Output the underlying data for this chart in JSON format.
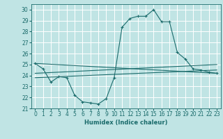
{
  "xlabel": "Humidex (Indice chaleur)",
  "ylabel": "",
  "xlim": [
    -0.5,
    23.5
  ],
  "ylim": [
    21,
    30.5
  ],
  "yticks": [
    21,
    22,
    23,
    24,
    25,
    26,
    27,
    28,
    29,
    30
  ],
  "xticks": [
    0,
    1,
    2,
    3,
    4,
    5,
    6,
    7,
    8,
    9,
    10,
    11,
    12,
    13,
    14,
    15,
    16,
    17,
    18,
    19,
    20,
    21,
    22,
    23
  ],
  "background_color": "#c0e4e4",
  "line_color": "#1a6b6b",
  "grid_color": "#ffffff",
  "lines": [
    {
      "x": [
        0,
        1,
        2,
        3,
        4,
        5,
        6,
        7,
        8,
        9,
        10,
        11,
        12,
        13,
        14,
        15,
        16,
        17,
        18,
        19,
        20,
        21,
        22,
        23
      ],
      "y": [
        25.1,
        24.6,
        23.4,
        23.9,
        23.8,
        22.2,
        21.6,
        21.5,
        21.4,
        21.9,
        23.8,
        28.4,
        29.2,
        29.4,
        29.4,
        30.0,
        28.9,
        28.9,
        26.1,
        25.5,
        24.6,
        24.5,
        24.3,
        24.2
      ]
    },
    {
      "x": [
        0,
        23
      ],
      "y": [
        25.1,
        24.2
      ]
    },
    {
      "x": [
        0,
        23
      ],
      "y": [
        24.2,
        25.0
      ]
    },
    {
      "x": [
        0,
        23
      ],
      "y": [
        23.8,
        24.5
      ]
    }
  ]
}
